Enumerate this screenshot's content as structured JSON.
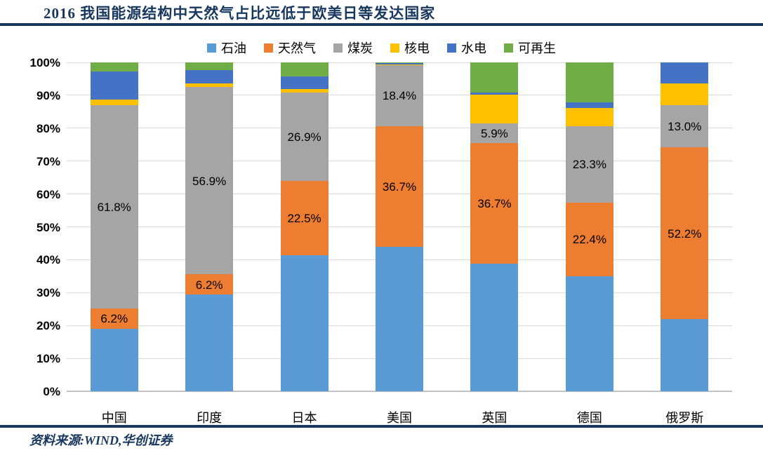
{
  "header": {
    "title": "2016 我国能源结构中天然气占比远低于欧美日等发达国家"
  },
  "footer": {
    "source": "资料来源:WIND,华创证券"
  },
  "chart_data": {
    "type": "bar",
    "stacked": true,
    "unit": "%",
    "title": "2016 我国能源结构中天然气占比远低于欧美日等发达国家",
    "categories": [
      "中国",
      "印度",
      "日本",
      "美国",
      "英国",
      "德国",
      "俄罗斯"
    ],
    "series": [
      {
        "name": "石油",
        "color": "#5B9BD5",
        "labeled": false,
        "values": [
          19.0,
          29.4,
          41.4,
          44.0,
          38.8,
          35.0,
          21.9
        ]
      },
      {
        "name": "天然气",
        "color": "#ED7D31",
        "labeled": true,
        "values": [
          6.2,
          6.2,
          22.5,
          36.7,
          36.7,
          22.4,
          52.2
        ]
      },
      {
        "name": "煤炭",
        "color": "#A5A5A5",
        "labeled": true,
        "values": [
          61.8,
          56.9,
          26.9,
          18.4,
          5.9,
          23.3,
          13.0
        ]
      },
      {
        "name": "核电",
        "color": "#FFC000",
        "labeled": false,
        "values": [
          1.6,
          1.2,
          1.0,
          0.3,
          8.9,
          5.5,
          6.6
        ]
      },
      {
        "name": "水电",
        "color": "#4472C4",
        "labeled": false,
        "values": [
          8.6,
          4.0,
          4.0,
          0.3,
          0.6,
          1.7,
          6.3
        ]
      },
      {
        "name": "可再生",
        "color": "#70AD47",
        "labeled": false,
        "values": [
          2.8,
          2.3,
          4.2,
          0.3,
          9.1,
          12.1,
          0.0
        ]
      }
    ],
    "y_ticks": [
      "0%",
      "10%",
      "20%",
      "30%",
      "40%",
      "50%",
      "60%",
      "70%",
      "80%",
      "90%",
      "100%"
    ],
    "ylim": [
      0,
      100
    ],
    "grid": true,
    "legend_position": "top",
    "gridline_color": "#D9D9D9",
    "axis_color": "#C3C3C3",
    "accent_color": "#17375E"
  }
}
